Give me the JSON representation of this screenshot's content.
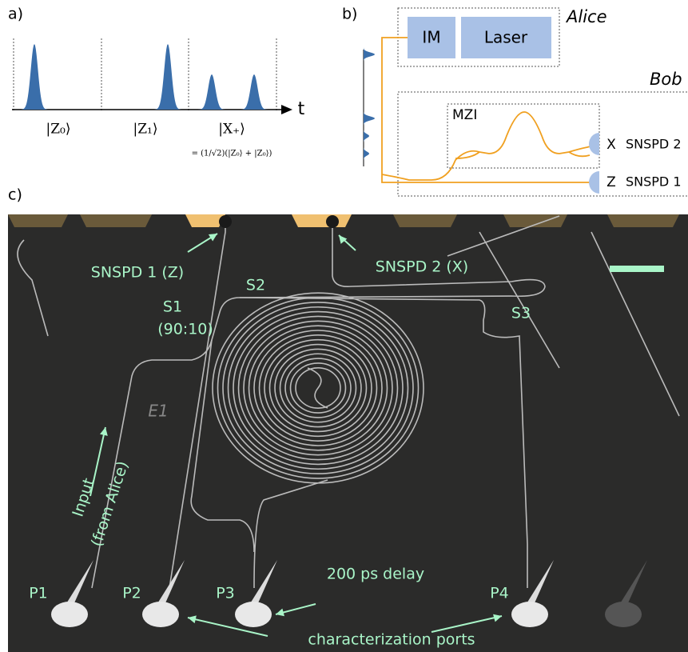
{
  "panel_a": {
    "label": "a)",
    "states": [
      "|Z₀⟩",
      "|Z₁⟩",
      "|X₊⟩"
    ],
    "formula": "= (1/√2)(|Z₀⟩ + |Z₀⟩)",
    "axis_label": "t"
  },
  "panel_b": {
    "label": "b)",
    "alice": {
      "title": "Alice",
      "blocks": [
        "IM",
        "Laser"
      ]
    },
    "bob": {
      "title": "Bob",
      "mzi": "MZI",
      "detectors": [
        {
          "basis": "X",
          "name": "SNSPD 2"
        },
        {
          "basis": "Z",
          "name": "SNSPD 1"
        }
      ]
    }
  },
  "panel_c": {
    "label": "c)",
    "annotations": {
      "snspd1": "SNSPD 1 (Z)",
      "snspd2": "SNSPD 2 (X)",
      "s1": "S1",
      "s1_ratio": "(90:10)",
      "s2": "S2",
      "s3": "S3",
      "e1": "E1",
      "input": "Input",
      "input_source": "(from Alice)",
      "delay": "200 ps delay",
      "ports_label": "characterization ports"
    },
    "ports": [
      "P1",
      "P2",
      "P3",
      "P4"
    ]
  }
}
